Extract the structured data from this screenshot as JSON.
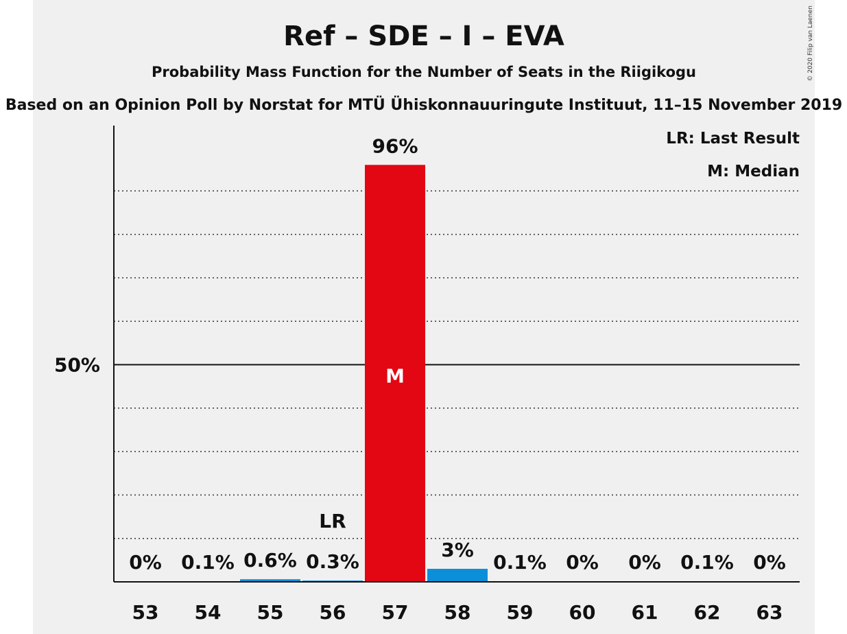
{
  "chart_data": {
    "type": "bar",
    "title": "Ref – SDE – I – EVA",
    "subtitle": "Probability Mass Function for the Number of Seats in the Riigikogu",
    "subtitle2": "Based on an Opinion Poll by Norstat for MTÜ Ühiskonnauuringute Instituut, 11–15 November 2019",
    "copyright": "© 2020 Filip van Laenen",
    "categories": [
      "53",
      "54",
      "55",
      "56",
      "57",
      "58",
      "59",
      "60",
      "61",
      "62",
      "63"
    ],
    "values": [
      0,
      0.1,
      0.6,
      0.3,
      96,
      3,
      0.1,
      0,
      0,
      0.1,
      0
    ],
    "value_labels": [
      "0%",
      "0.1%",
      "0.6%",
      "0.3%",
      "96%",
      "3%",
      "0.1%",
      "0%",
      "0%",
      "0.1%",
      "0%"
    ],
    "bar_colors": [
      "#0b8fd9",
      "#0b8fd9",
      "#0b8fd9",
      "#0b8fd9",
      "#e30613",
      "#0b8fd9",
      "#0b8fd9",
      "#0b8fd9",
      "#0b8fd9",
      "#0b8fd9",
      "#0b8fd9"
    ],
    "median_category": "57",
    "median_marker": "M",
    "last_result_category": "56",
    "last_result_marker": "LR",
    "y_tick_label": "50%",
    "y_tick_value": 50,
    "ylim": [
      0,
      100
    ],
    "grid": true,
    "legend": {
      "placement": "top-right",
      "entries": [
        "LR: Last Result",
        "M: Median"
      ]
    }
  }
}
